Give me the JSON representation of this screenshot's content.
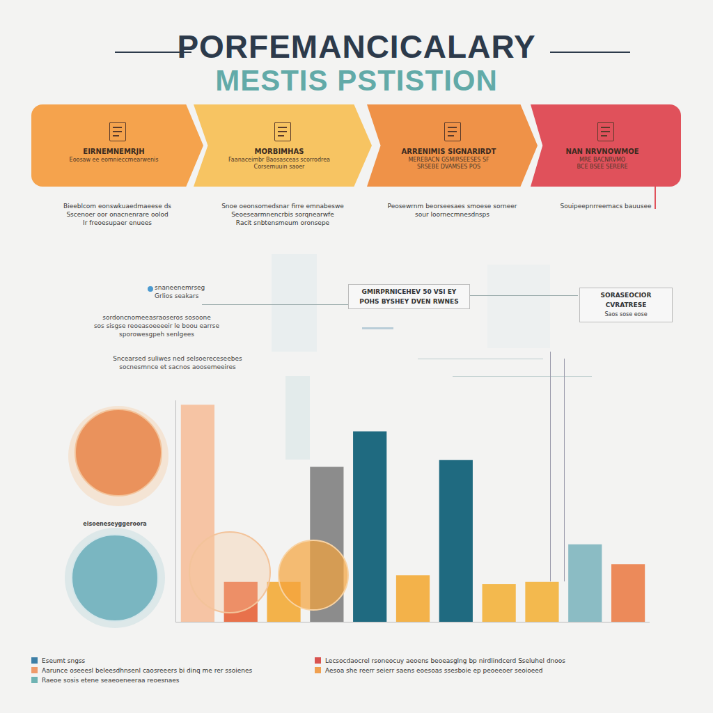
{
  "header": {
    "title": "PORFEMANCICALARY",
    "subtitle": "MESTIS PSTISTION"
  },
  "steps": [
    {
      "label": "EIRNEMNEMRJH",
      "color": "#f5a34d",
      "text": [
        "Eoosaw ee eomnieccmearwenis"
      ],
      "note": [
        "Bieeblcom eonswkuaedmaeese ds",
        "Sscenoer oor onacnenrare oolod",
        "Ir freoesupaer enuees"
      ]
    },
    {
      "label": "MORBIMHAS",
      "color": "#f7c462",
      "text": [
        "Faanaceimbr Baosasceas scorrodrea",
        "Corsemuuin saoer"
      ],
      "note": [
        "Snoe oeonsomedsnar firre emnabeswe",
        "Seoesearmnencrbis sorqnearwfe",
        "Racit snbtensmeum oronsepe"
      ]
    },
    {
      "label": "ARRENIMIS SIGNARIRDT",
      "color": "#ef9248",
      "text": [
        "MEREBACN GSMIRSEESES SF",
        "SRSEBE DVAMSES POS"
      ],
      "note": [
        "Peosewrnm beorseesaes smoese sorneer",
        "sour loornecmnesdnsps"
      ]
    },
    {
      "label": "NAN NRVNOWMOE",
      "color": "#e0515b",
      "text": [
        "MRE BACNRVMO",
        "BCE BSEE SERERE"
      ],
      "note": [
        "Souipeepnrreemacs bauusee"
      ]
    }
  ],
  "callouts": {
    "left": {
      "title": [
        "snaneenemrseg",
        "Grlios seakars"
      ],
      "text": [
        [
          "sordoncnomeeasraoseros sosoone",
          "sos sisgse reoeasoeeeeir le boou earrse",
          "sporowesgpeh senlgees"
        ],
        [
          "Sncearsed suliwes ned selsoereceseebes",
          "socnesmnce et sacnos aoosemeeires"
        ]
      ]
    },
    "center": [
      "GMIRPRNICEHEV 50 VSI EY",
      "POHS BYSHEY DVEN RWNES"
    ],
    "right": {
      "title": "SORASEOCIOR CVRATRESE",
      "text": "Saos sose eose"
    }
  },
  "circle_label": "eisoeneseyggeroora",
  "chart_data": {
    "type": "bar",
    "categories": [
      null,
      null,
      null,
      null,
      null,
      null,
      null,
      null,
      null,
      null,
      null
    ],
    "values": [
      98,
      18,
      18,
      70,
      86,
      21,
      73,
      17,
      18,
      35,
      26
    ],
    "colors": [
      "#f6c4a4",
      "#e8714b",
      "#f3b24a",
      "#8c8c8c",
      "#1f6a80",
      "#f3b24a",
      "#1f6a80",
      "#f3b94e",
      "#f3b94e",
      "#8bbcc4",
      "#ec8a5a"
    ],
    "ylim": [
      0,
      100
    ],
    "tick_labels": false
  },
  "key": {
    "left": [
      {
        "text": "Eseumt sngss",
        "color": "#3d7fa6"
      },
      {
        "text": "Aarunce oseeesl beleesdhnsenl caosreeers bi dinq me rer ssoienes",
        "color": "#ef9a6a"
      },
      {
        "text": "Raeoe sosis etene seaeoeneeraa reoesnaes",
        "color": "#6fb3b3"
      }
    ],
    "right": [
      {
        "text": "Lecsocdaocrel rsoneocuy aeoens beoeasglng bp nirdlindcerd Sseluhel dnoos",
        "color": "#d9534f"
      },
      {
        "text": "Aesoa she reerr seierr saens eoesoas ssesboie ep peoeeoer seoioeed",
        "color": "#f0a050"
      }
    ]
  }
}
